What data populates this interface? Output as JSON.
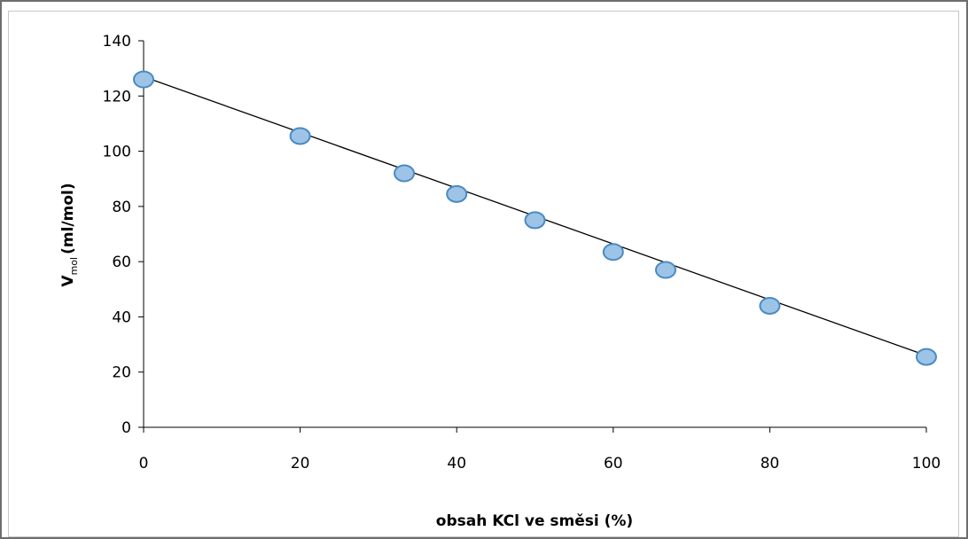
{
  "chart_data": {
    "type": "scatter",
    "xlabel": "obsah KCl ve směsi (%)",
    "ylabel": {
      "main": "V",
      "subscript": "mol",
      "rest": "(ml/mol)"
    },
    "xlim": [
      0,
      100
    ],
    "ylim": [
      0,
      140
    ],
    "x_ticks": [
      "0",
      "20",
      "40",
      "60",
      "80",
      "100"
    ],
    "y_ticks": [
      "0",
      "20",
      "40",
      "60",
      "80",
      "100",
      "120",
      "140"
    ],
    "grid": false,
    "legend": "none",
    "series": [
      {
        "x": [
          0,
          20,
          33.3,
          40,
          50,
          60,
          66.7,
          80,
          100
        ],
        "y": [
          126,
          105.5,
          92,
          84.5,
          75,
          63.5,
          57,
          44,
          25.5
        ]
      }
    ],
    "trendline": {
      "type": "linear",
      "x": [
        0,
        100
      ],
      "y": [
        127,
        26
      ]
    },
    "colors": {
      "marker_fill": "#9dc3e6",
      "marker_stroke": "#4a8bc2",
      "trendline": "#000000",
      "axis": "#000000"
    }
  }
}
